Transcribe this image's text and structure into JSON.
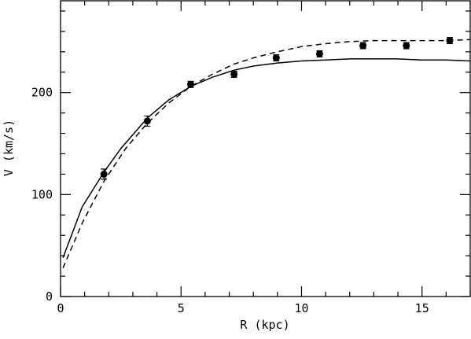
{
  "chart_data": {
    "type": "scatter",
    "title": "",
    "xlabel": "R (kpc)",
    "ylabel": "V (km/s)",
    "xlim": [
      0,
      17
    ],
    "ylim": [
      0,
      290
    ],
    "x_ticks": [
      0,
      5,
      10,
      15
    ],
    "y_ticks": [
      0,
      100,
      200
    ],
    "x_tick_labels": [
      "0",
      "5",
      "10",
      "15"
    ],
    "y_tick_labels": [
      "0",
      "100",
      "200"
    ],
    "grid": false,
    "legend": "none",
    "points": {
      "x": [
        1.8,
        3.6,
        5.4,
        7.2,
        8.95,
        10.75,
        12.55,
        14.35,
        16.15
      ],
      "y": [
        120,
        172,
        208,
        218,
        234,
        238,
        246,
        246,
        251
      ],
      "yerr": [
        5,
        5,
        3,
        3,
        3,
        3,
        3,
        3,
        3
      ]
    },
    "curves": [
      {
        "style": "solid",
        "x": [
          0.1,
          0.9,
          1.8,
          2.5,
          3.6,
          4.5,
          5.4,
          6.3,
          7.2,
          8.0,
          9.0,
          10.0,
          11.0,
          12.0,
          13.0,
          14.0,
          15.0,
          16.0,
          17.0
        ],
        "y": [
          38,
          88,
          122,
          145,
          175,
          193,
          206,
          215,
          222,
          226,
          229,
          231,
          232,
          233,
          233,
          233,
          232,
          232,
          231
        ]
      },
      {
        "style": "dashed",
        "x": [
          0.1,
          0.9,
          1.8,
          2.7,
          3.6,
          4.5,
          5.4,
          6.3,
          7.2,
          8.0,
          9.0,
          10.0,
          11.0,
          12.0,
          13.0,
          14.0,
          15.0,
          16.0,
          17.0
        ],
        "y": [
          28,
          72,
          113,
          145,
          170,
          190,
          206,
          218,
          228,
          234,
          240,
          245,
          248,
          250,
          251,
          251,
          251,
          251,
          252
        ]
      }
    ]
  }
}
